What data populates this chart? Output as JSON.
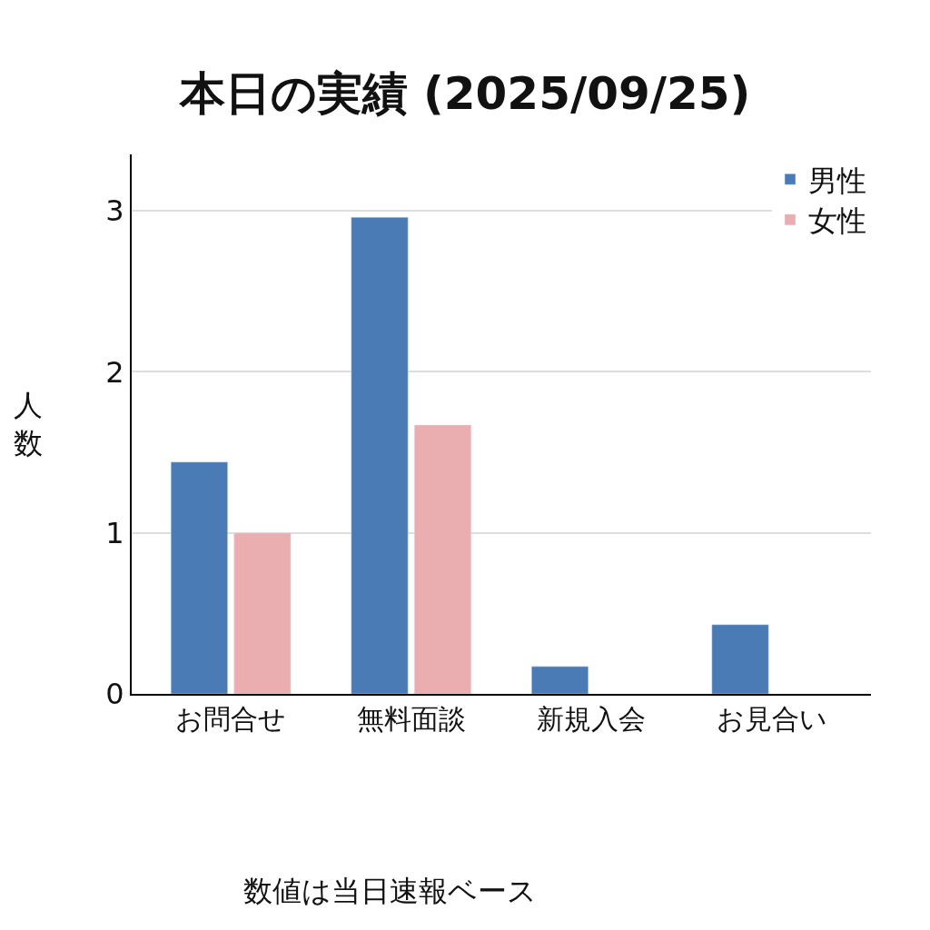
{
  "chart_data": {
    "type": "bar",
    "title": "本日の実績 (2025/09/25)",
    "ylabel": "人数",
    "categories": [
      "お問合せ",
      "無料面談",
      "新規入会",
      "お見合い"
    ],
    "series": [
      {
        "name": "男性",
        "color": "#4a7bb5",
        "values": [
          1.44,
          2.96,
          0.17,
          0.43
        ]
      },
      {
        "name": "女性",
        "color": "#eaaeb1",
        "values": [
          1.0,
          1.67,
          null,
          null
        ]
      }
    ],
    "ylim": [
      0,
      3.35
    ],
    "yticks": [
      0,
      1,
      2,
      3
    ],
    "grid": "y",
    "legend": "top right",
    "annotations": [
      "数値は当日速報ベース"
    ]
  }
}
